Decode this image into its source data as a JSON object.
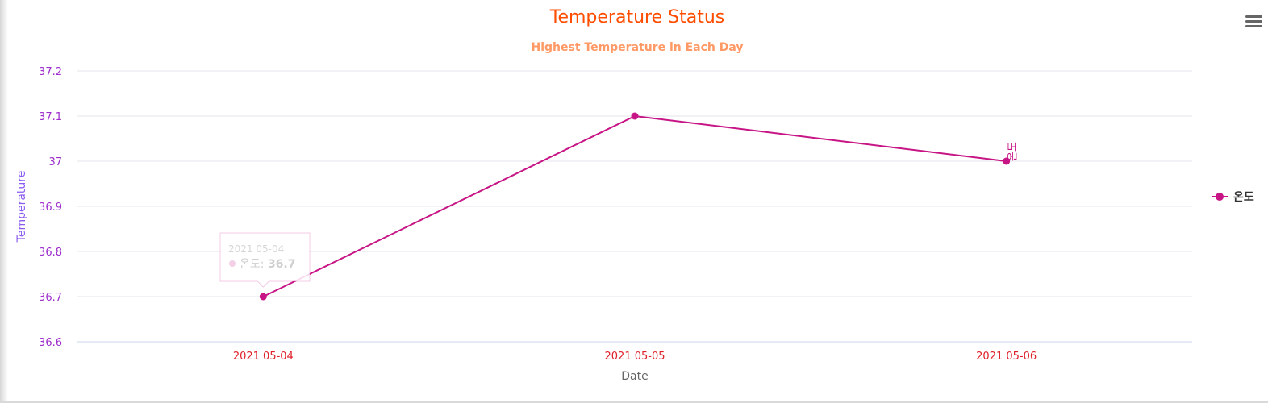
{
  "chart_data": {
    "type": "line",
    "title": "Temperature Status",
    "subtitle": "Highest Temperature in Each Day",
    "xlabel": "Date",
    "ylabel": "Temperature",
    "categories": [
      "2021 05-04",
      "2021 05-05",
      "2021 05-06"
    ],
    "series": [
      {
        "name": "온도",
        "values": [
          36.7,
          37.1,
          37.0
        ]
      }
    ],
    "ylim": [
      36.6,
      37.2
    ],
    "yticks": [
      36.6,
      36.7,
      36.8,
      36.9,
      37,
      37.1,
      37.2
    ],
    "ytick_labels": [
      "36.6",
      "36.7",
      "36.8",
      "36.9",
      "37",
      "37.1",
      "37.2"
    ],
    "grid": true,
    "legend_position": "right",
    "end_label": "온도",
    "tooltip": {
      "category": "2021 05-04",
      "series_label": "온도",
      "value": "36.7"
    }
  },
  "colors": {
    "title": "#ff4d00",
    "subtitle": "#ff9966",
    "axis_label": "#8a5cf0",
    "ytick": "#9c2ccc",
    "xtick": "#e0202a",
    "series": "#c71585",
    "grid": "#e6e6ec",
    "axis_line": "#ccd6eb",
    "xlabel": "#666666",
    "legend_text": "#333333"
  },
  "toolbar": {
    "menu_icon": "hamburger-menu-icon"
  }
}
